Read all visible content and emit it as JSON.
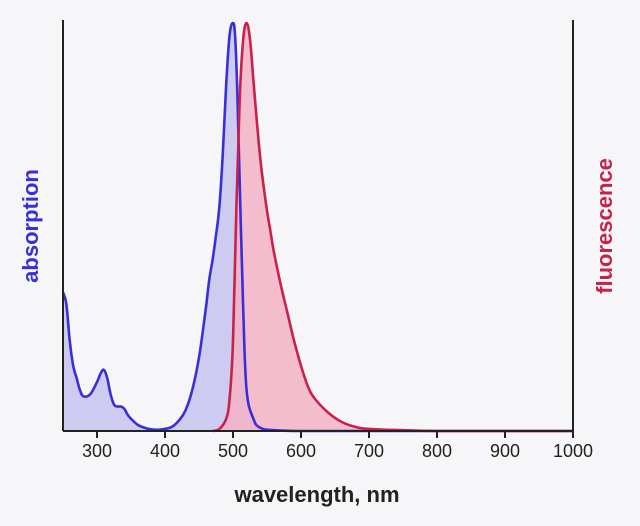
{
  "chart_data": {
    "type": "area",
    "xlabel": "wavelength, nm",
    "ylabel_left": "absorption",
    "ylabel_right": "fluorescence",
    "xlim": [
      250,
      1000
    ],
    "xticks": [
      300,
      400,
      500,
      600,
      700,
      800,
      900,
      1000
    ],
    "ylim": [
      0,
      1
    ],
    "colors": {
      "absorption_line": "#3a2fd6",
      "absorption_fill": "#c7c3ee",
      "fluorescence_line": "#c8224c",
      "fluorescence_fill": "#f3b3c6",
      "axis": "#222222"
    },
    "series": [
      {
        "name": "absorption",
        "x": [
          250,
          255,
          260,
          265,
          270,
          275,
          280,
          290,
          300,
          305,
          310,
          315,
          320,
          325,
          330,
          335,
          340,
          345,
          350,
          360,
          370,
          380,
          390,
          400,
          410,
          420,
          430,
          440,
          450,
          460,
          465,
          470,
          475,
          480,
          485,
          490,
          495,
          500,
          503,
          506,
          510,
          515,
          520,
          530,
          540,
          560,
          600,
          700,
          1000
        ],
        "y": [
          0.34,
          0.31,
          0.22,
          0.16,
          0.13,
          0.1,
          0.085,
          0.09,
          0.12,
          0.14,
          0.15,
          0.13,
          0.09,
          0.065,
          0.06,
          0.06,
          0.055,
          0.04,
          0.03,
          0.015,
          0.008,
          0.004,
          0.003,
          0.005,
          0.01,
          0.025,
          0.05,
          0.1,
          0.18,
          0.3,
          0.37,
          0.42,
          0.48,
          0.55,
          0.68,
          0.85,
          0.97,
          1.0,
          0.97,
          0.85,
          0.6,
          0.3,
          0.1,
          0.03,
          0.008,
          0.002,
          0.0,
          0.0,
          0.0
        ]
      },
      {
        "name": "fluorescence",
        "x": [
          470,
          480,
          490,
          495,
          500,
          505,
          510,
          515,
          520,
          525,
          530,
          535,
          540,
          545,
          550,
          555,
          560,
          570,
          580,
          590,
          600,
          610,
          620,
          640,
          660,
          680,
          700,
          750,
          800,
          900,
          1000
        ],
        "y": [
          0.0,
          0.005,
          0.03,
          0.08,
          0.22,
          0.55,
          0.82,
          0.96,
          1.0,
          0.96,
          0.86,
          0.76,
          0.67,
          0.6,
          0.54,
          0.49,
          0.44,
          0.36,
          0.29,
          0.22,
          0.16,
          0.11,
          0.08,
          0.045,
          0.022,
          0.01,
          0.005,
          0.002,
          0.0,
          0.0,
          0.0
        ]
      }
    ]
  }
}
